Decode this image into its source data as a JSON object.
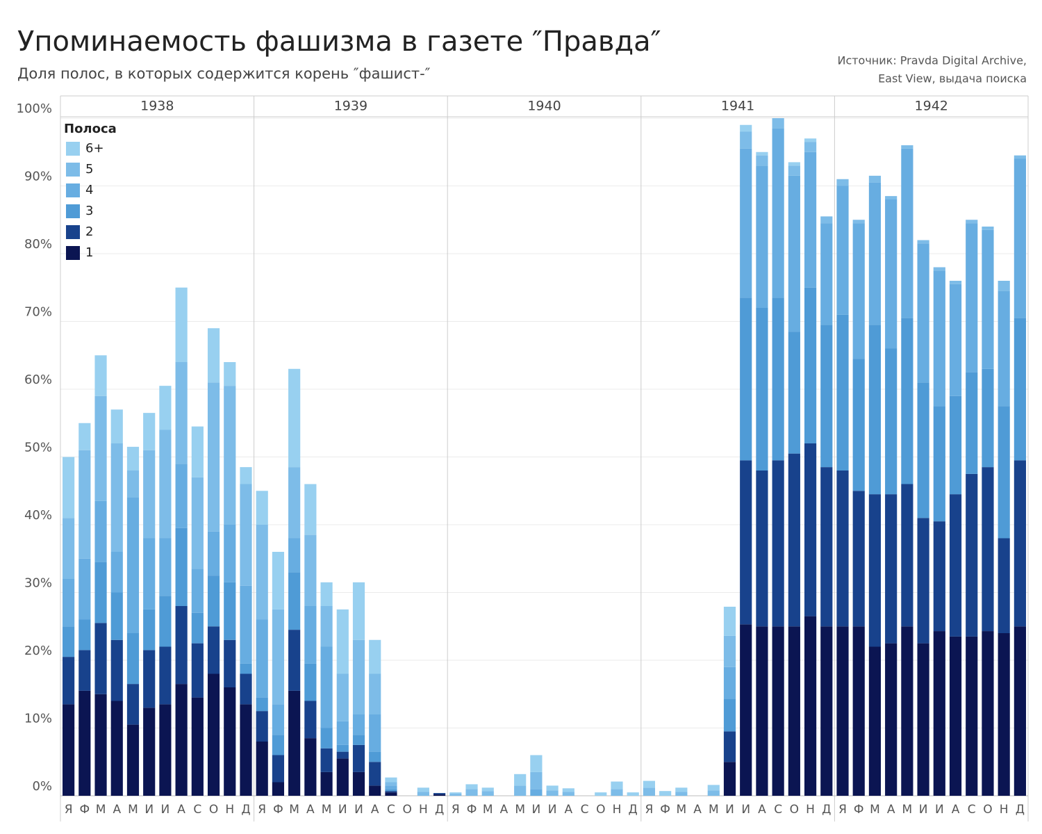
{
  "chart_data": {
    "type": "stacked_bar",
    "title": "Упоминаемость фашизма в газете ″Правда″",
    "subtitle": "Доля полос, в которых содержится корень ″фашист-″",
    "source": [
      "Источник: Pravda Digital Archive,",
      "East View, выдача поиска"
    ],
    "legend_title": "Полоса",
    "years": [
      "1938",
      "1939",
      "1940",
      "1941",
      "1942"
    ],
    "categories": [
      "Я",
      "Ф",
      "М",
      "А",
      "М",
      "И",
      "И",
      "А",
      "С",
      "О",
      "Н",
      "Д",
      "Я",
      "Ф",
      "М",
      "А",
      "М",
      "И",
      "И",
      "А",
      "С",
      "О",
      "Н",
      "Д",
      "Я",
      "Ф",
      "М",
      "А",
      "М",
      "И",
      "И",
      "А",
      "С",
      "О",
      "Н",
      "Д",
      "Я",
      "Ф",
      "М",
      "А",
      "М",
      "И",
      "И",
      "А",
      "С",
      "О",
      "Н",
      "Д",
      "Я",
      "Ф",
      "М",
      "А",
      "М",
      "И",
      "И",
      "А",
      "С",
      "О",
      "Н",
      "Д"
    ],
    "series": [
      {
        "name": "1",
        "color": "#0b1552",
        "values": [
          13.5,
          15.5,
          15,
          14,
          10.5,
          13,
          13.5,
          16.5,
          14.5,
          18,
          16,
          13.5,
          8,
          2,
          15.5,
          8.5,
          3.5,
          5.5,
          3.5,
          1.5,
          0.5,
          0,
          0,
          0.2,
          0,
          0,
          0,
          0,
          0,
          0,
          0,
          0,
          0,
          0,
          0,
          0,
          0,
          0,
          0,
          0,
          0,
          5,
          25.3,
          25,
          25,
          25,
          26.5,
          25,
          25,
          25,
          22,
          22.5,
          25,
          22.5,
          24.3,
          23.5,
          23.5,
          24.3,
          24,
          25
        ]
      },
      {
        "name": "2",
        "color": "#18428c",
        "values": [
          7,
          6,
          10.5,
          9,
          6,
          8.5,
          8.5,
          11.5,
          8,
          7,
          7,
          4.5,
          4.5,
          4,
          9,
          5.5,
          3.5,
          1,
          4,
          3.5,
          0.2,
          0,
          0,
          0.2,
          0,
          0,
          0,
          0,
          0,
          0,
          0,
          0,
          0,
          0,
          0,
          0,
          0,
          0,
          0,
          0,
          0,
          4.5,
          24.2,
          23,
          24.5,
          25.5,
          25.5,
          23.5,
          23,
          20,
          22.5,
          22,
          21,
          18.5,
          16.2,
          21,
          24,
          24.2,
          14,
          24.5
        ]
      },
      {
        "name": "3",
        "color": "#4f9bd6",
        "values": [
          4.5,
          4.5,
          9,
          7,
          7.5,
          6,
          7.5,
          11.5,
          4.5,
          7.5,
          8.5,
          1.5,
          2,
          3,
          8.5,
          5.5,
          3,
          1,
          1.5,
          1.5,
          0.3,
          0,
          0,
          0,
          0,
          0,
          0,
          0,
          0,
          0,
          0,
          0,
          0,
          0,
          0,
          0,
          0,
          0,
          0,
          0,
          0,
          4.8,
          24,
          24,
          24,
          18,
          23,
          21,
          23,
          19.5,
          25,
          21.5,
          24.5,
          20,
          17,
          14.5,
          15,
          14.5,
          19.5,
          21
        ]
      },
      {
        "name": "4",
        "color": "#67ade1",
        "values": [
          7,
          9,
          9,
          6,
          20,
          10.5,
          8.5,
          9.5,
          6.5,
          6.5,
          8.5,
          11.5,
          11.5,
          4.5,
          5,
          8.5,
          12,
          3.5,
          3,
          5.5,
          0.5,
          0,
          0,
          0,
          0,
          0,
          0,
          0,
          0,
          1,
          0,
          0,
          0,
          0,
          0,
          0,
          0,
          0,
          0,
          0,
          0,
          4.7,
          22,
          21,
          25,
          23,
          20,
          15,
          19,
          20,
          21,
          22,
          25,
          20.5,
          20,
          16.5,
          22,
          20.5,
          17,
          23.5
        ]
      },
      {
        "name": "5",
        "color": "#7dbce8",
        "values": [
          9,
          16,
          15.5,
          16,
          4,
          13,
          16,
          15,
          13.5,
          22,
          20.5,
          15,
          14,
          14,
          10.5,
          10.5,
          6,
          7,
          11,
          6,
          0.5,
          0,
          0.6,
          0,
          0.3,
          1,
          0.7,
          0,
          1.5,
          2.5,
          0.8,
          0.6,
          0,
          0,
          1,
          0,
          1.2,
          0,
          0.6,
          0,
          0.8,
          4.6,
          2.5,
          1.5,
          1.5,
          1.5,
          1.5,
          1,
          1,
          0.5,
          1,
          0.5,
          0.5,
          0.5,
          0.5,
          0.5,
          0.5,
          0.5,
          1.5,
          0.5
        ]
      },
      {
        "name": "6+",
        "color": "#98d0f0",
        "values": [
          9,
          4,
          6,
          5,
          3.5,
          5.5,
          6.5,
          11,
          7.5,
          8,
          3.5,
          2.5,
          5,
          8.5,
          14.5,
          7.5,
          3.5,
          9.5,
          8.5,
          5,
          0.7,
          0,
          0.6,
          0,
          0.2,
          0.7,
          0.5,
          0,
          1.7,
          2.5,
          0.7,
          0.5,
          0,
          0.5,
          1.1,
          0.5,
          1,
          0.7,
          0.6,
          0,
          0.8,
          4.3,
          1,
          0.5,
          0,
          0.5,
          0.5,
          0,
          0,
          0,
          0,
          0,
          0,
          0,
          0,
          0,
          0,
          0,
          0,
          0
        ]
      }
    ],
    "ylim": [
      0,
      100
    ],
    "yticks": [
      {
        "value": 0,
        "label": "0%"
      },
      {
        "value": 10,
        "label": "10%"
      },
      {
        "value": 20,
        "label": "20%"
      },
      {
        "value": 30,
        "label": "30%"
      },
      {
        "value": 40,
        "label": "40%"
      },
      {
        "value": 50,
        "label": "50%"
      },
      {
        "value": 60,
        "label": "60%"
      },
      {
        "value": 70,
        "label": "70%"
      },
      {
        "value": 80,
        "label": "80%"
      },
      {
        "value": 90,
        "label": "90%"
      },
      {
        "value": 100,
        "label": "100%"
      }
    ],
    "grid": true
  }
}
